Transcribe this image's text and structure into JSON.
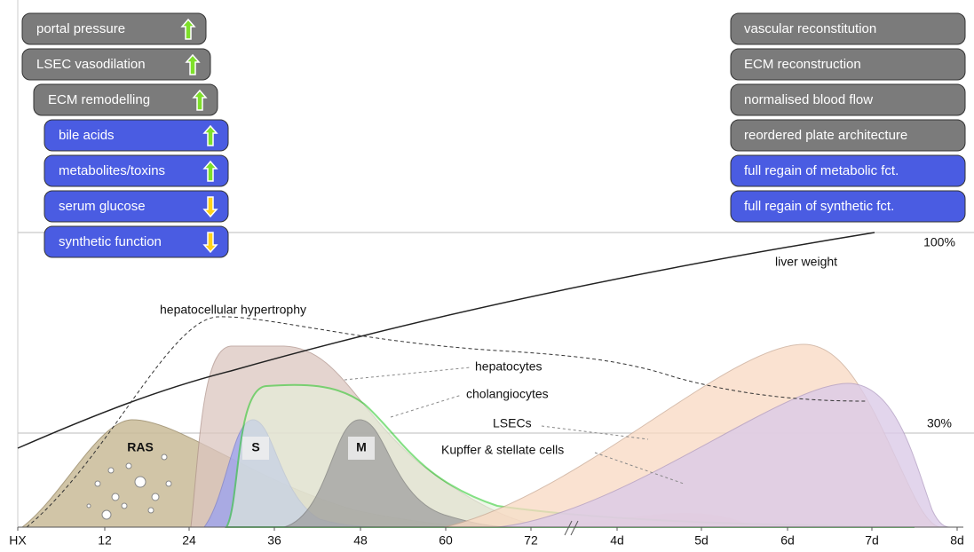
{
  "left_panel": [
    "portal pressure",
    "LSEC vasodilation",
    "ECM remodelling",
    "bile acids",
    "metabolites/toxins",
    "serum glucose",
    "synthetic function"
  ],
  "right_panel": [
    "vascular reconstitution",
    "ECM reconstruction",
    "normalised blood flow",
    "reordered plate architecture",
    "full regain of metabolic fct.",
    "full regain of synthetic fct."
  ],
  "x_axis_labels": [
    "HX",
    "12",
    "24",
    "36",
    "48",
    "60",
    "72",
    "4d",
    "5d",
    "6d",
    "7d",
    "8d"
  ],
  "level_labels": [
    "100%",
    "30%"
  ],
  "curve_labels": {
    "hypertrophy": "hepatocellular hypertrophy",
    "liver_weight": "liver weight",
    "hepatocytes": "hepatocytes",
    "cholangiocytes": "cholangiocytes",
    "lsecs": "LSECs",
    "kupffer": "Kupffer & stellate cells",
    "ras": "RAS",
    "s_phase": "S",
    "mitosis": "M"
  }
}
